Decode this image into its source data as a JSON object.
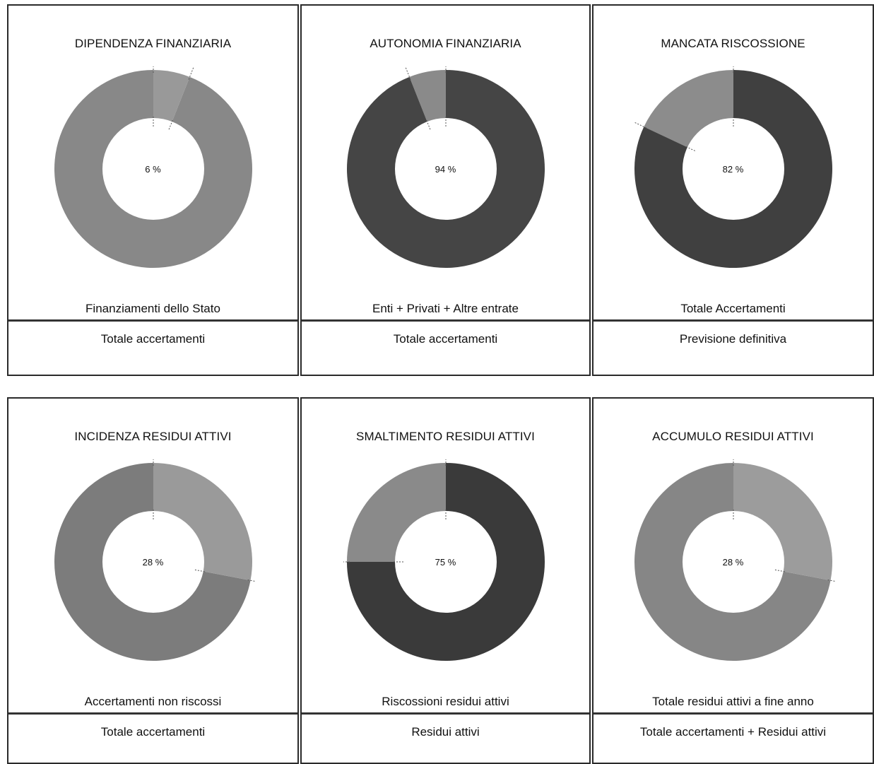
{
  "colors": {
    "light": "#8e8e8e",
    "medium": "#7a7a7a",
    "dark": "#3e3e3e",
    "hole": "#ffffff",
    "border": "#2a2a2a"
  },
  "chart_data": [
    {
      "type": "pie",
      "title": "DIPENDENZA FINANZIARIA",
      "center_label": "6 %",
      "numerator_label": "Finanziamenti dello Stato",
      "denominator_label": "Totale accertamenti",
      "value": 6,
      "highlight_color": "#999999",
      "rest_color": "#888888"
    },
    {
      "type": "pie",
      "title": "AUTONOMIA FINANZIARIA",
      "center_label": "94 %",
      "numerator_label": "Enti + Privati + Altre entrate",
      "denominator_label": "Totale accertamenti",
      "value": 94,
      "highlight_color": "#454545",
      "rest_color": "#8a8a8a"
    },
    {
      "type": "pie",
      "title": "MANCATA RISCOSSIONE",
      "center_label": "82 %",
      "numerator_label": "Totale Accertamenti",
      "denominator_label": "Previsione definitiva",
      "value": 82,
      "highlight_color": "#404040",
      "rest_color": "#8c8c8c"
    },
    {
      "type": "pie",
      "title": "INCIDENZA RESIDUI ATTIVI",
      "center_label": "28 %",
      "numerator_label": "Accertamenti non riscossi",
      "denominator_label": "Totale accertamenti",
      "value": 28,
      "highlight_color": "#9a9a9a",
      "rest_color": "#7c7c7c"
    },
    {
      "type": "pie",
      "title": "SMALTIMENTO RESIDUI ATTIVI",
      "center_label": "75 %",
      "numerator_label": "Riscossioni residui attivi",
      "denominator_label": "Residui attivi",
      "value": 75,
      "highlight_color": "#3a3a3a",
      "rest_color": "#8a8a8a"
    },
    {
      "type": "pie",
      "title": "ACCUMULO RESIDUI ATTIVI",
      "center_label": "28 %",
      "numerator_label": "Totale residui attivi a fine anno",
      "denominator_label": "Totale accertamenti + Residui attivi",
      "value": 28,
      "highlight_color": "#9c9c9c",
      "rest_color": "#868686"
    }
  ]
}
